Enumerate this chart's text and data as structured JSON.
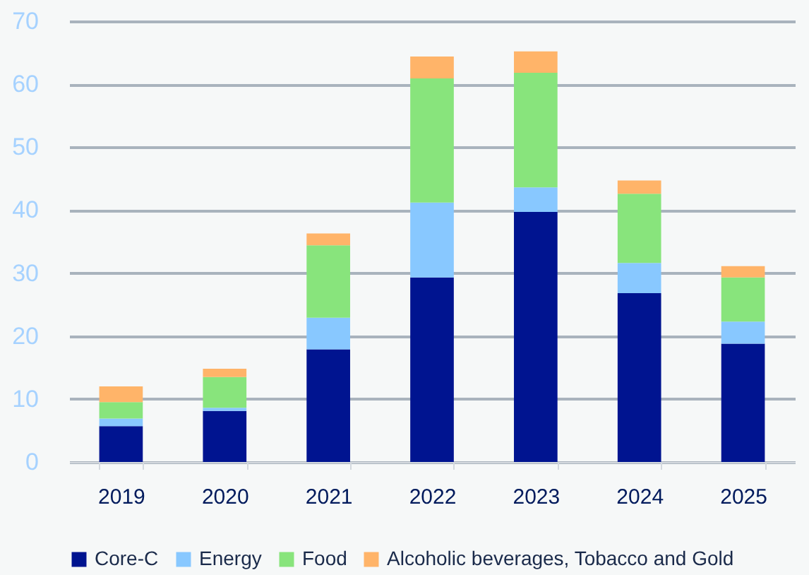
{
  "chart_data": {
    "type": "bar",
    "stacked": true,
    "categories": [
      "2019",
      "2020",
      "2021",
      "2022",
      "2023",
      "2024",
      "2025"
    ],
    "series": [
      {
        "name": "Core-C",
        "color": "#001490",
        "values": [
          5.7,
          8.1,
          17.9,
          29.3,
          39.7,
          26.8,
          18.8
        ]
      },
      {
        "name": "Energy",
        "color": "#88c8ff",
        "values": [
          1.2,
          0.5,
          5.0,
          11.9,
          3.9,
          4.8,
          3.5
        ]
      },
      {
        "name": "Food",
        "color": "#88e47c",
        "values": [
          2.6,
          4.9,
          11.5,
          19.7,
          18.2,
          11.0,
          7.0
        ]
      },
      {
        "name": "Alcoholic beverages, Tobacco and Gold",
        "color": "#ffb469",
        "values": [
          2.5,
          1.3,
          1.9,
          3.5,
          3.4,
          2.1,
          1.8
        ]
      }
    ],
    "ylim": [
      0,
      70
    ],
    "yticks": [
      0,
      10,
      20,
      30,
      40,
      50,
      60,
      70
    ],
    "grid": "y",
    "legend": "bottom"
  }
}
